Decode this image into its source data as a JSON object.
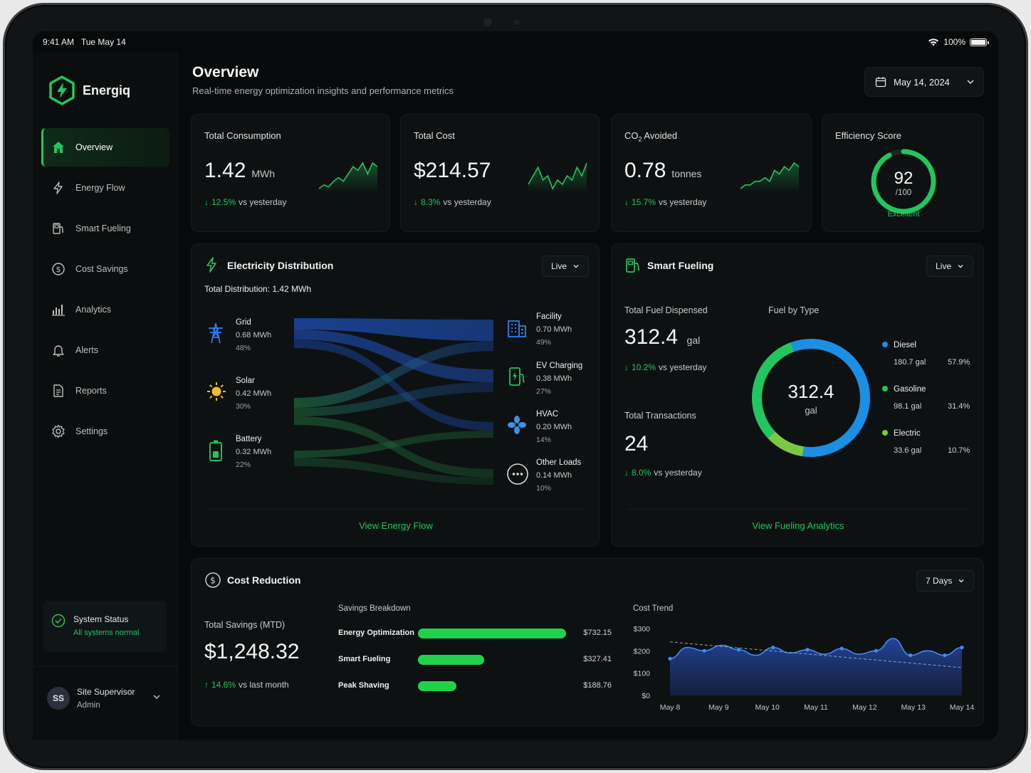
{
  "status_bar": {
    "time": "9:41 AM",
    "date": "Tue May 14",
    "battery": "100%"
  },
  "app": {
    "name": "Energiq"
  },
  "sidebar": {
    "items": [
      {
        "label": "Overview",
        "icon": "home-icon",
        "active": true
      },
      {
        "label": "Energy Flow",
        "icon": "lightning-icon"
      },
      {
        "label": "Smart Fueling",
        "icon": "fuel-pump-icon"
      },
      {
        "label": "Cost Savings",
        "icon": "dollar-icon"
      },
      {
        "label": "Analytics",
        "icon": "bar-chart-icon"
      },
      {
        "label": "Alerts",
        "icon": "bell-icon"
      },
      {
        "label": "Reports",
        "icon": "document-icon"
      },
      {
        "label": "Settings",
        "icon": "gear-icon"
      }
    ],
    "system_status": {
      "title": "System Status",
      "subtitle": "All systems normal"
    },
    "user": {
      "initials": "SS",
      "name": "Site Supervisor",
      "role": "Admin"
    }
  },
  "header": {
    "title": "Overview",
    "subtitle": "Real-time energy optimization insights and performance metrics",
    "date": "May 14, 2024"
  },
  "kpis": [
    {
      "label": "Total Consumption",
      "value": "1.42",
      "unit": "MWh",
      "delta": "12.5%",
      "delta_text": "vs yesterday",
      "spark": [
        2,
        3,
        2.5,
        4,
        5,
        4,
        6,
        8,
        7,
        9,
        6,
        9,
        8
      ]
    },
    {
      "label": "Total Cost",
      "value": "$214.57",
      "unit": "",
      "delta": "8.3%",
      "delta_text": "vs yesterday",
      "spark": [
        4,
        6,
        8,
        5,
        6,
        3,
        5,
        4,
        6,
        5,
        8,
        6,
        9
      ]
    },
    {
      "label_main": "CO",
      "label_sub": "2",
      "label_rest": " Avoided",
      "value": "0.78",
      "unit": "tonnes",
      "delta": "15.7%",
      "delta_text": "vs yesterday",
      "spark": [
        2,
        3,
        3,
        4,
        4,
        5,
        4,
        7,
        6,
        8,
        7,
        9,
        8
      ]
    }
  ],
  "efficiency": {
    "label": "Efficiency Score",
    "score": "92",
    "max": "/100",
    "rating": "Excellent",
    "fraction": 0.92
  },
  "electricity": {
    "title": "Electricity Distribution",
    "mode": "Live",
    "total": "Total Distribution: 1.42 MWh",
    "sources": [
      {
        "name": "Grid",
        "value": "0.68 MWh",
        "pct": "48%",
        "icon": "power-tower-icon"
      },
      {
        "name": "Solar",
        "value": "0.42 MWh",
        "pct": "30%",
        "icon": "sun-icon"
      },
      {
        "name": "Battery",
        "value": "0.32 MWh",
        "pct": "22%",
        "icon": "battery-icon"
      }
    ],
    "destinations": [
      {
        "name": "Facility",
        "value": "0.70 MWh",
        "pct": "49%",
        "icon": "building-icon"
      },
      {
        "name": "EV Charging",
        "value": "0.38 MWh",
        "pct": "27%",
        "icon": "ev-charger-icon"
      },
      {
        "name": "HVAC",
        "value": "0.20 MWh",
        "pct": "14%",
        "icon": "fan-icon"
      },
      {
        "name": "Other Loads",
        "value": "0.14 MWh",
        "pct": "10%",
        "icon": "more-icon"
      }
    ],
    "link": "View Energy Flow"
  },
  "fueling": {
    "title": "Smart Fueling",
    "mode": "Live",
    "dispensed_label": "Total Fuel Dispensed",
    "dispensed_value": "312.4",
    "dispensed_unit": "gal",
    "dispensed_delta": "10.2%",
    "dispensed_delta_text": "vs yesterday",
    "tx_label": "Total Transactions",
    "tx_value": "24",
    "tx_delta": "8.0%",
    "tx_delta_text": "vs yesterday",
    "by_type_label": "Fuel by Type",
    "donut_value": "312.4",
    "donut_unit": "gal",
    "types": [
      {
        "name": "Diesel",
        "amount": "180.7 gal",
        "pct": "57.9%",
        "share": 0.579,
        "color": "#1a8fe3"
      },
      {
        "name": "Gasoline",
        "amount": "98.1 gal",
        "pct": "31.4%",
        "share": 0.314,
        "color": "#22c55e"
      },
      {
        "name": "Electric",
        "amount": "33.6 gal",
        "pct": "10.7%",
        "share": 0.107,
        "color": "#7ac943"
      }
    ],
    "link": "View Fueling Analytics"
  },
  "cost": {
    "title": "Cost Reduction",
    "period": "7 Days",
    "total_label": "Total Savings (MTD)",
    "total_value": "$1,248.32",
    "total_delta": "14.6%",
    "total_delta_text": "vs last month",
    "breakdown_label": "Savings Breakdown",
    "breakdown": [
      {
        "label": "Energy Optimization",
        "value": "$732.15",
        "amount": 732.15
      },
      {
        "label": "Smart Fueling",
        "value": "$327.41",
        "amount": 327.41
      },
      {
        "label": "Peak Shaving",
        "value": "$188.76",
        "amount": 188.76
      }
    ],
    "trend_label": "Cost Trend",
    "trend_chart": {
      "type": "area",
      "y_ticks": [
        "$300",
        "$200",
        "$100",
        "$0"
      ],
      "ylim": [
        0,
        300
      ],
      "x_labels": [
        "May 8",
        "May 9",
        "May 10",
        "May 11",
        "May 12",
        "May 13",
        "May 14"
      ],
      "values": [
        165,
        215,
        200,
        225,
        205,
        180,
        215,
        190,
        205,
        185,
        210,
        185,
        200,
        255,
        180,
        200,
        180,
        215
      ],
      "trend_start": 240,
      "trend_end": 125
    }
  }
}
